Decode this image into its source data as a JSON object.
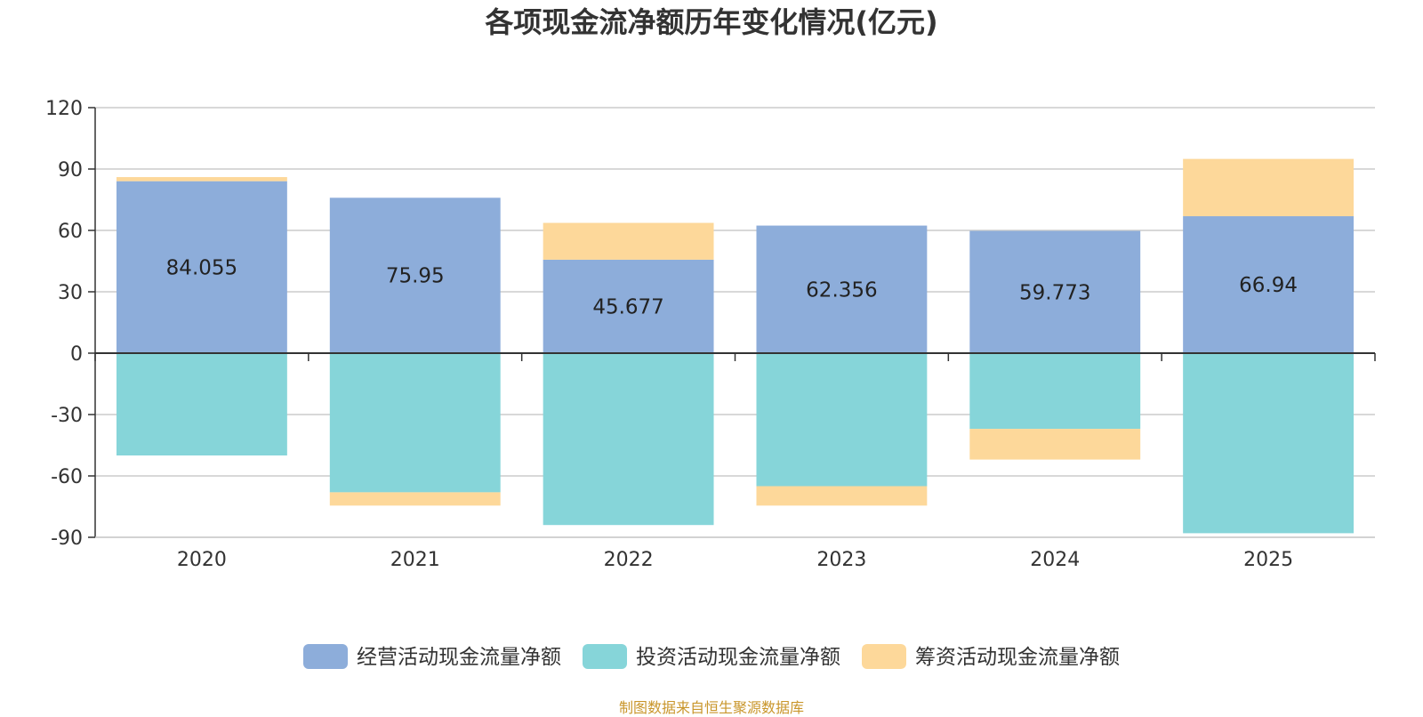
{
  "chart_data": {
    "type": "bar",
    "stacked": true,
    "title": "各项现金流净额历年变化情况(亿元)",
    "categories": [
      "2020",
      "2021",
      "2022",
      "2023",
      "2024",
      "2025"
    ],
    "ylim": [
      -90,
      120
    ],
    "yticks": [
      120,
      90,
      60,
      30,
      0,
      -30,
      -60,
      -90
    ],
    "grid": true,
    "legend_position": "bottom-center",
    "series": [
      {
        "name": "经营活动现金流量净额",
        "color": "#8dadda",
        "values": [
          84.055,
          75.95,
          45.677,
          62.356,
          59.773,
          66.94
        ],
        "labels": [
          "84.055",
          "75.95",
          "45.677",
          "62.356",
          "59.773",
          "66.94"
        ]
      },
      {
        "name": "投资活动现金流量净额",
        "color": "#86d5d9",
        "values": [
          -50,
          -68,
          -84,
          -65,
          -37,
          -88
        ]
      },
      {
        "name": "筹资活动现金流量净额",
        "color": "#fdd89a",
        "values": [
          2,
          -6.5,
          18,
          -9.5,
          -15,
          28
        ]
      }
    ]
  },
  "source_text": "制图数据来自恒生聚源数据库"
}
